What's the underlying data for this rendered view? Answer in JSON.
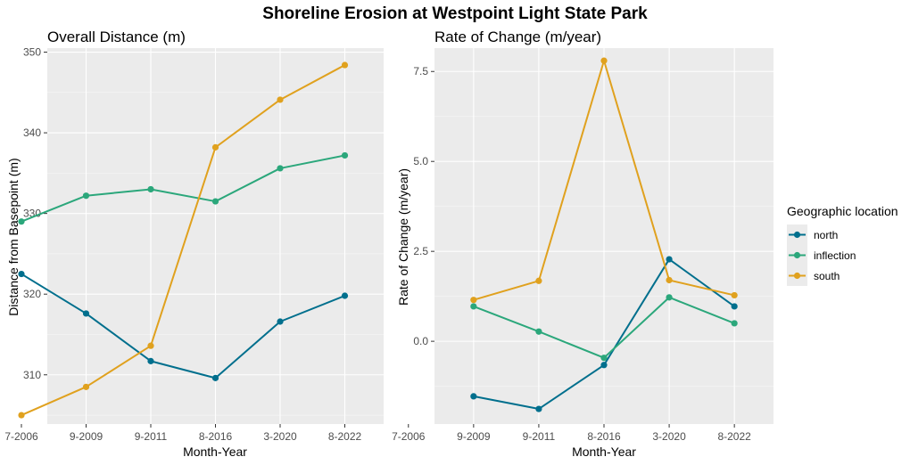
{
  "title": "Shoreline Erosion at Westpoint Light State Park",
  "legend": {
    "title": "Geographic location",
    "entries": [
      {
        "name": "north",
        "color": "#006f8d"
      },
      {
        "name": "inflection",
        "color": "#2ba77b"
      },
      {
        "name": "south",
        "color": "#e0a11e"
      }
    ]
  },
  "chart_data": [
    {
      "type": "line",
      "title": "Overall Distance (m)",
      "xlabel": "Month-Year",
      "ylabel": "Distance from Basepoint (m)",
      "categories": [
        "7-2006",
        "9-2009",
        "9-2011",
        "8-2016",
        "3-2020",
        "8-2022"
      ],
      "ylim": [
        303.9,
        350.5
      ],
      "yticks": [
        310,
        320,
        330,
        340,
        350
      ],
      "ytick_labels": [
        "310",
        "320",
        "330",
        "340",
        "350"
      ],
      "grid": true,
      "series": [
        {
          "name": "north",
          "values": [
            322.5,
            317.6,
            311.7,
            309.6,
            316.6,
            319.8
          ]
        },
        {
          "name": "inflection",
          "values": [
            329.0,
            332.2,
            333.0,
            331.5,
            335.6,
            337.2
          ]
        },
        {
          "name": "south",
          "values": [
            305.0,
            308.5,
            313.6,
            338.2,
            344.1,
            348.4
          ]
        }
      ]
    },
    {
      "type": "line",
      "title": "Rate of Change (m/year)",
      "xlabel": "Month-Year",
      "ylabel": "Rate of Change (m/year)",
      "categories": [
        "7-2006",
        "9-2009",
        "9-2011",
        "8-2016",
        "3-2020",
        "8-2022"
      ],
      "ylim": [
        -2.3,
        8.15
      ],
      "yticks": [
        0,
        2.5,
        5,
        7.5
      ],
      "ytick_labels": [
        "0.0",
        "2.5",
        "5.0",
        "7.5"
      ],
      "grid": true,
      "series": [
        {
          "name": "north",
          "values": [
            null,
            -1.53,
            -1.88,
            -0.66,
            2.28,
            0.97
          ]
        },
        {
          "name": "inflection",
          "values": [
            null,
            0.97,
            0.27,
            -0.46,
            1.22,
            0.5
          ]
        },
        {
          "name": "south",
          "values": [
            null,
            1.15,
            1.68,
            7.8,
            1.7,
            1.28
          ]
        }
      ]
    }
  ]
}
